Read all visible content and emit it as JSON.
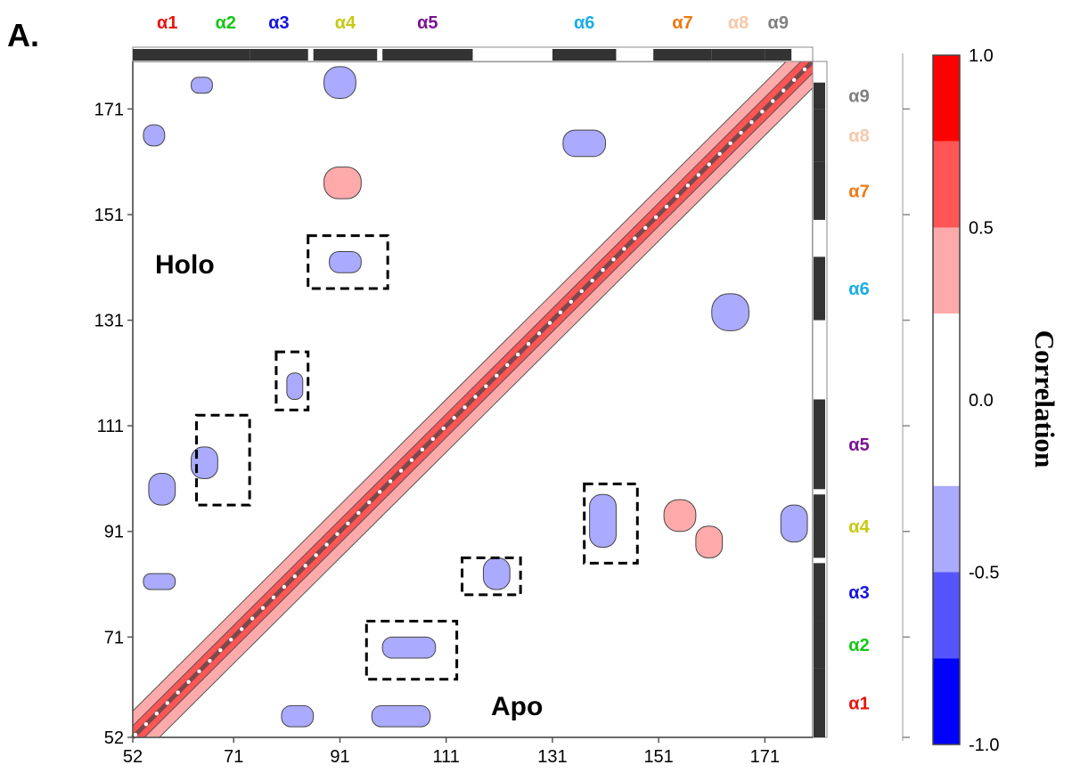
{
  "panel_label": "A.",
  "chart_data": {
    "type": "heatmap",
    "title": "",
    "xlabel": "",
    "ylabel": "",
    "xlim": [
      52,
      180
    ],
    "ylim": [
      52,
      180
    ],
    "x_ticks": [
      52,
      71,
      91,
      111,
      131,
      151,
      171
    ],
    "y_ticks": [
      52,
      71,
      91,
      111,
      131,
      151,
      171
    ],
    "region_labels": {
      "upper_left": "Holo",
      "lower_right": "Apo"
    },
    "colorbar": {
      "title": "Correlation",
      "range": [
        -1.0,
        1.0
      ],
      "tick_labels": [
        "1.0",
        "0.5",
        "0.0",
        "-0.5",
        "-1.0"
      ],
      "bands": [
        {
          "from": 0.75,
          "to": 1.0,
          "color": "#ff0000"
        },
        {
          "from": 0.5,
          "to": 0.75,
          "color": "#ff5555"
        },
        {
          "from": 0.25,
          "to": 0.5,
          "color": "#ffaaaa"
        },
        {
          "from": -0.25,
          "to": 0.25,
          "color": "#ffffff"
        },
        {
          "from": -0.5,
          "to": -0.25,
          "color": "#aaaaff"
        },
        {
          "from": -0.75,
          "to": -0.5,
          "color": "#5555ff"
        },
        {
          "from": -1.0,
          "to": -0.75,
          "color": "#0000ff"
        }
      ]
    },
    "helices": [
      {
        "name": "α1",
        "start": 52,
        "end": 65,
        "color": "#e8140c"
      },
      {
        "name": "α2",
        "start": 65,
        "end": 74,
        "color": "#14c814"
      },
      {
        "name": "α3",
        "start": 74,
        "end": 85,
        "color": "#1414dc"
      },
      {
        "name": "α4",
        "start": 86,
        "end": 98,
        "color": "#c8c814"
      },
      {
        "name": "α5",
        "start": 99,
        "end": 116,
        "color": "#7a1490"
      },
      {
        "name": "α6",
        "start": 131,
        "end": 143,
        "color": "#19aee6"
      },
      {
        "name": "α7",
        "start": 150,
        "end": 161,
        "color": "#f07814"
      },
      {
        "name": "α8",
        "start": 161,
        "end": 171,
        "color": "#f5c8aa"
      },
      {
        "name": "α9",
        "start": 171,
        "end": 176,
        "color": "#808080"
      }
    ],
    "correlation_patches": [
      {
        "region": "holo",
        "x": [
          55,
          60
        ],
        "y": [
          96,
          102
        ],
        "r": -0.4
      },
      {
        "region": "holo",
        "x": [
          63,
          68
        ],
        "y": [
          101,
          107
        ],
        "r": -0.4
      },
      {
        "region": "holo",
        "x": [
          81,
          84
        ],
        "y": [
          116,
          121
        ],
        "r": -0.4
      },
      {
        "region": "holo",
        "x": [
          89,
          95
        ],
        "y": [
          140,
          144
        ],
        "r": -0.4
      },
      {
        "region": "holo",
        "x": [
          88,
          94
        ],
        "y": [
          173,
          179
        ],
        "r": -0.4
      },
      {
        "region": "holo",
        "x": [
          88,
          95
        ],
        "y": [
          154,
          160
        ],
        "r": 0.35
      },
      {
        "region": "holo",
        "x": [
          54,
          58
        ],
        "y": [
          164,
          168
        ],
        "r": -0.35
      },
      {
        "region": "holo",
        "x": [
          54,
          60
        ],
        "y": [
          80,
          83
        ],
        "r": -0.35
      },
      {
        "region": "holo",
        "x": [
          63,
          67
        ],
        "y": [
          174,
          177
        ],
        "r": -0.35
      },
      {
        "region": "apo",
        "x": [
          99,
          109
        ],
        "y": [
          67,
          71
        ],
        "r": -0.45
      },
      {
        "region": "apo",
        "x": [
          118,
          123
        ],
        "y": [
          80,
          86
        ],
        "r": -0.4
      },
      {
        "region": "apo",
        "x": [
          138,
          143
        ],
        "y": [
          88,
          98
        ],
        "r": -0.4
      },
      {
        "region": "apo",
        "x": [
          97,
          108
        ],
        "y": [
          54,
          58
        ],
        "r": -0.4
      },
      {
        "region": "apo",
        "x": [
          80,
          86
        ],
        "y": [
          54,
          58
        ],
        "r": -0.35
      },
      {
        "region": "apo",
        "x": [
          174,
          179
        ],
        "y": [
          89,
          96
        ],
        "r": -0.4
      },
      {
        "region": "apo",
        "x": [
          161,
          168
        ],
        "y": [
          129,
          136
        ],
        "r": -0.35
      },
      {
        "region": "apo",
        "x": [
          133,
          141
        ],
        "y": [
          162,
          167
        ],
        "r": -0.35
      },
      {
        "region": "apo",
        "x": [
          152,
          158
        ],
        "y": [
          91,
          97
        ],
        "r": 0.35
      },
      {
        "region": "apo",
        "x": [
          158,
          163
        ],
        "y": [
          86,
          92
        ],
        "r": 0.35
      }
    ],
    "highlight_boxes": [
      {
        "region": "holo",
        "x": [
          64,
          74
        ],
        "y": [
          96,
          113
        ]
      },
      {
        "region": "holo",
        "x": [
          79,
          85
        ],
        "y": [
          114,
          125
        ]
      },
      {
        "region": "holo",
        "x": [
          85,
          100
        ],
        "y": [
          137,
          147
        ]
      },
      {
        "region": "apo",
        "x": [
          96,
          113
        ],
        "y": [
          63,
          74
        ]
      },
      {
        "region": "apo",
        "x": [
          114,
          125
        ],
        "y": [
          79,
          86
        ]
      },
      {
        "region": "apo",
        "x": [
          137,
          147
        ],
        "y": [
          85,
          100
        ]
      }
    ]
  }
}
